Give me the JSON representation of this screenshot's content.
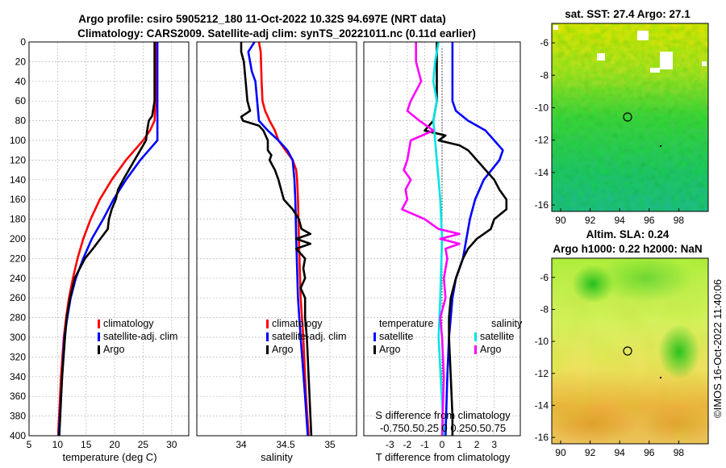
{
  "header": {
    "title_line1": "Argo profile: csiro 5905212_180 11-Oct-2022 10.32S 94.697E (NRT data)",
    "title_line2": "Climatology: CARS2009. Satellite-adj clim: synTS_20221011.nc (0.11d earlier)"
  },
  "depth_ticks": [
    "0",
    "20",
    "40",
    "60",
    "80",
    "100",
    "120",
    "140",
    "160",
    "180",
    "200",
    "220",
    "240",
    "260",
    "280",
    "300",
    "320",
    "340",
    "360",
    "380",
    "400"
  ],
  "colors": {
    "climatology": "#ff0000",
    "satellite": "#0000ff",
    "argo": "#000000",
    "salinity_sat": "#00e5e5",
    "salinity_argo": "#ff00ff"
  },
  "chart_data": [
    {
      "type": "line",
      "id": "temperature",
      "xlabel": "temperature (deg C)",
      "ylabel": "depth",
      "xlim": [
        5,
        33
      ],
      "ylim": [
        400,
        0
      ],
      "xticks": [
        "5",
        "10",
        "15",
        "20",
        "25",
        "30"
      ],
      "legend": {
        "climatology": "climatology",
        "satellite": "satellite-adj. clim",
        "argo": "Argo"
      },
      "series": [
        {
          "name": "climatology",
          "color": "#ff0000",
          "depth": [
            0,
            60,
            80,
            90,
            100,
            110,
            120,
            140,
            160,
            180,
            200,
            220,
            240,
            260,
            280,
            300,
            340,
            400
          ],
          "values": [
            27.2,
            27.2,
            27.0,
            26.2,
            25.0,
            23.5,
            22.0,
            19.5,
            17.4,
            15.8,
            14.5,
            13.5,
            12.7,
            12.0,
            11.5,
            11.1,
            10.6,
            10.1
          ]
        },
        {
          "name": "satellite",
          "color": "#0000ff",
          "depth": [
            0,
            60,
            80,
            100,
            110,
            120,
            140,
            160,
            180,
            200,
            220,
            240,
            260,
            280,
            300,
            340,
            400
          ],
          "values": [
            27.5,
            27.5,
            27.5,
            27.5,
            26.0,
            24.5,
            22.0,
            19.8,
            18.0,
            16.0,
            14.5,
            13.2,
            12.3,
            11.7,
            11.2,
            10.8,
            10.2
          ]
        },
        {
          "name": "argo",
          "color": "#000000",
          "depth": [
            0,
            60,
            75,
            80,
            90,
            100,
            110,
            120,
            140,
            150,
            160,
            170,
            180,
            190,
            200,
            210,
            220,
            240,
            260,
            280,
            300,
            340,
            400
          ],
          "values": [
            27.0,
            27.0,
            26.6,
            26.0,
            25.7,
            25.5,
            24.5,
            23.5,
            21.5,
            20.6,
            20.2,
            19.5,
            19.0,
            18.8,
            17.5,
            16.2,
            14.8,
            13.0,
            12.2,
            11.6,
            11.3,
            10.8,
            10.3
          ]
        }
      ]
    },
    {
      "type": "line",
      "id": "salinity",
      "xlabel": "salinity",
      "ylabel": "depth",
      "xlim": [
        33.5,
        35.3
      ],
      "ylim": [
        400,
        0
      ],
      "xticks": [
        "34",
        "34.5",
        "35"
      ],
      "legend": {
        "climatology": "climatology",
        "satellite": "satellite-adj. clim",
        "argo": "Argo"
      },
      "series": [
        {
          "name": "climatology",
          "color": "#ff0000",
          "depth": [
            0,
            10,
            40,
            60,
            70,
            80,
            90,
            100,
            110,
            120,
            130,
            140,
            160,
            200,
            260,
            300,
            360,
            400
          ],
          "values": [
            34.2,
            34.22,
            34.23,
            34.24,
            34.27,
            34.32,
            34.38,
            34.42,
            34.5,
            34.58,
            34.62,
            34.63,
            34.64,
            34.65,
            34.67,
            34.7,
            34.73,
            34.76
          ]
        },
        {
          "name": "satellite",
          "color": "#0000ff",
          "depth": [
            0,
            10,
            20,
            30,
            40,
            60,
            80,
            90,
            100,
            110,
            120,
            140,
            160,
            200,
            260,
            300,
            360,
            400
          ],
          "values": [
            34.15,
            34.08,
            34.1,
            34.12,
            34.16,
            34.18,
            34.2,
            34.3,
            34.42,
            34.52,
            34.58,
            34.6,
            34.61,
            34.62,
            34.64,
            34.67,
            34.72,
            34.75
          ]
        },
        {
          "name": "argo",
          "color": "#000000",
          "depth": [
            0,
            10,
            20,
            40,
            60,
            70,
            76,
            80,
            85,
            90,
            100,
            110,
            115,
            120,
            125,
            130,
            140,
            150,
            160,
            170,
            180,
            190,
            195,
            200,
            205,
            210,
            220,
            230,
            240,
            250,
            260,
            280,
            300,
            340,
            380,
            400
          ],
          "values": [
            34.0,
            34.0,
            34.03,
            34.05,
            34.07,
            34.1,
            34.0,
            34.02,
            34.2,
            34.25,
            34.3,
            34.3,
            34.34,
            34.32,
            34.35,
            34.38,
            34.42,
            34.45,
            34.48,
            34.58,
            34.65,
            34.68,
            34.78,
            34.62,
            34.78,
            34.62,
            34.72,
            34.7,
            34.72,
            34.67,
            34.72,
            34.72,
            34.74,
            34.76,
            34.78,
            34.79
          ]
        }
      ]
    },
    {
      "type": "line",
      "id": "difference",
      "xlabel": "T difference from climatology",
      "top_label": "S difference from climatology",
      "top_ticks": "-0.750.50.25  0  0.250.50.75",
      "xlim": [
        -4.5,
        4.5
      ],
      "ylim": [
        400,
        0
      ],
      "xticks": [
        "-3",
        "-2",
        "-1",
        "0",
        "1",
        "2",
        "3"
      ],
      "legend": {
        "temperature": "temperature",
        "salinity": "salinity",
        "satellite": "satellite",
        "argo": "Argo",
        "satellite_s": "satellite",
        "argo_s": "Argo"
      },
      "series": [
        {
          "name": "T satellite",
          "color": "#0000ff",
          "depth": [
            0,
            40,
            60,
            70,
            80,
            90,
            100,
            110,
            120,
            140,
            160,
            180,
            200,
            220,
            240,
            260,
            280,
            300,
            340,
            400
          ],
          "values": [
            0.6,
            0.6,
            0.6,
            0.8,
            1.5,
            2.5,
            3.0,
            3.5,
            3.3,
            2.4,
            1.9,
            1.6,
            1.4,
            1.2,
            0.8,
            0.6,
            0.5,
            0.4,
            0.3,
            0.2
          ]
        },
        {
          "name": "T argo",
          "color": "#000000",
          "depth": [
            0,
            60,
            80,
            90,
            95,
            100,
            105,
            110,
            120,
            130,
            140,
            150,
            160,
            170,
            180,
            190,
            200,
            210,
            220,
            240,
            260,
            280,
            300,
            340,
            380,
            400
          ],
          "values": [
            -0.3,
            -0.3,
            -0.5,
            -1.0,
            0.2,
            -0.2,
            1.0,
            1.5,
            2.0,
            2.5,
            3.0,
            3.3,
            3.7,
            3.7,
            3.0,
            2.8,
            2.0,
            1.5,
            1.2,
            0.8,
            0.5,
            0.4,
            0.4,
            0.5,
            0.6,
            0.6
          ]
        },
        {
          "name": "S satellite",
          "color": "#00e5e5",
          "depth": [
            0,
            20,
            40,
            60,
            80,
            100,
            120,
            140,
            160,
            200,
            260,
            300,
            400
          ],
          "values": [
            -0.2,
            -0.4,
            -0.5,
            -0.3,
            -0.5,
            -0.4,
            -0.3,
            -0.2,
            -0.1,
            0.0,
            -0.1,
            -0.2,
            0.1
          ]
        },
        {
          "name": "S argo",
          "color": "#ff00ff",
          "depth": [
            0,
            20,
            40,
            60,
            70,
            80,
            90,
            100,
            120,
            130,
            140,
            150,
            160,
            170,
            180,
            190,
            195,
            200,
            205,
            210,
            220,
            240,
            260,
            280,
            300,
            340,
            400
          ],
          "values": [
            -1.5,
            -1.5,
            -1.2,
            -1.8,
            -2.0,
            -1.3,
            -0.5,
            -1.8,
            -2.0,
            -2.2,
            -1.8,
            -2.1,
            -2.0,
            -2.3,
            -1.0,
            -0.2,
            1.0,
            -0.1,
            1.0,
            0.2,
            0.3,
            0.1,
            0.2,
            -0.1,
            0.0,
            0.1,
            0.0
          ]
        }
      ]
    },
    {
      "type": "heatmap",
      "id": "sst_map",
      "title": "sat. SST: 27.4 Argo: 27.1",
      "xticks": [
        "90",
        "92",
        "94",
        "96",
        "98"
      ],
      "yticks": [
        "-6",
        "-8",
        "-10",
        "-12",
        "-14",
        "-16"
      ],
      "xlim": [
        89.4,
        100
      ],
      "ylim": [
        -16.4,
        -4.8
      ],
      "argo_position": [
        94.7,
        -10.32
      ]
    },
    {
      "type": "heatmap",
      "id": "sla_map",
      "title_line1": "Altim. SLA: 0.24",
      "title_line2": "Argo h1000: 0.22 h2000: NaN",
      "xticks": [
        "90",
        "92",
        "94",
        "96",
        "98"
      ],
      "yticks": [
        "-6",
        "-8",
        "-10",
        "-12",
        "-14",
        "-16"
      ],
      "xlim": [
        89.4,
        100
      ],
      "ylim": [
        -16.4,
        -4.8
      ],
      "argo_position": [
        94.7,
        -10.32
      ]
    }
  ],
  "footer": {
    "stamp": "©IMOS 16-Oct-2022 11:40:06"
  }
}
